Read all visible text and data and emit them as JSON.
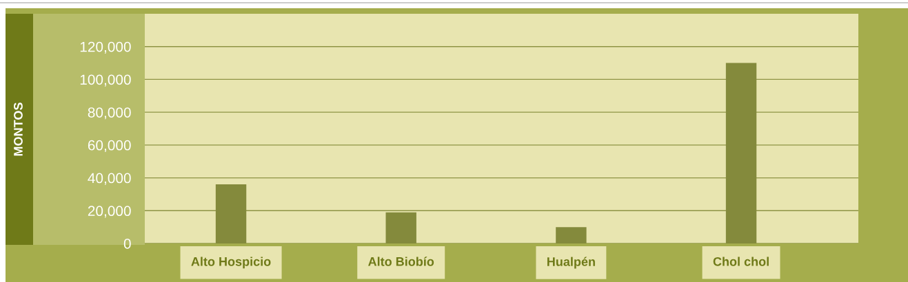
{
  "chart_data": {
    "type": "bar",
    "ylabel": "MONTOS",
    "categories": [
      "Alto Hospicio",
      "Alto Biobío",
      "Hualpén",
      "Chol chol"
    ],
    "values": [
      36000,
      19000,
      10000,
      110000
    ],
    "color": "#848a3c",
    "ylim": [
      0,
      140000
    ],
    "yticks": [
      {
        "value": 0,
        "label": "0"
      },
      {
        "value": 20000,
        "label": "20,000"
      },
      {
        "value": 40000,
        "label": "40,000"
      },
      {
        "value": 60000,
        "label": "60,000"
      },
      {
        "value": 80000,
        "label": "80,000"
      },
      {
        "value": 100000,
        "label": "100,000"
      },
      {
        "value": 120000,
        "label": "120,000"
      }
    ],
    "grid": "y",
    "legend": false
  }
}
